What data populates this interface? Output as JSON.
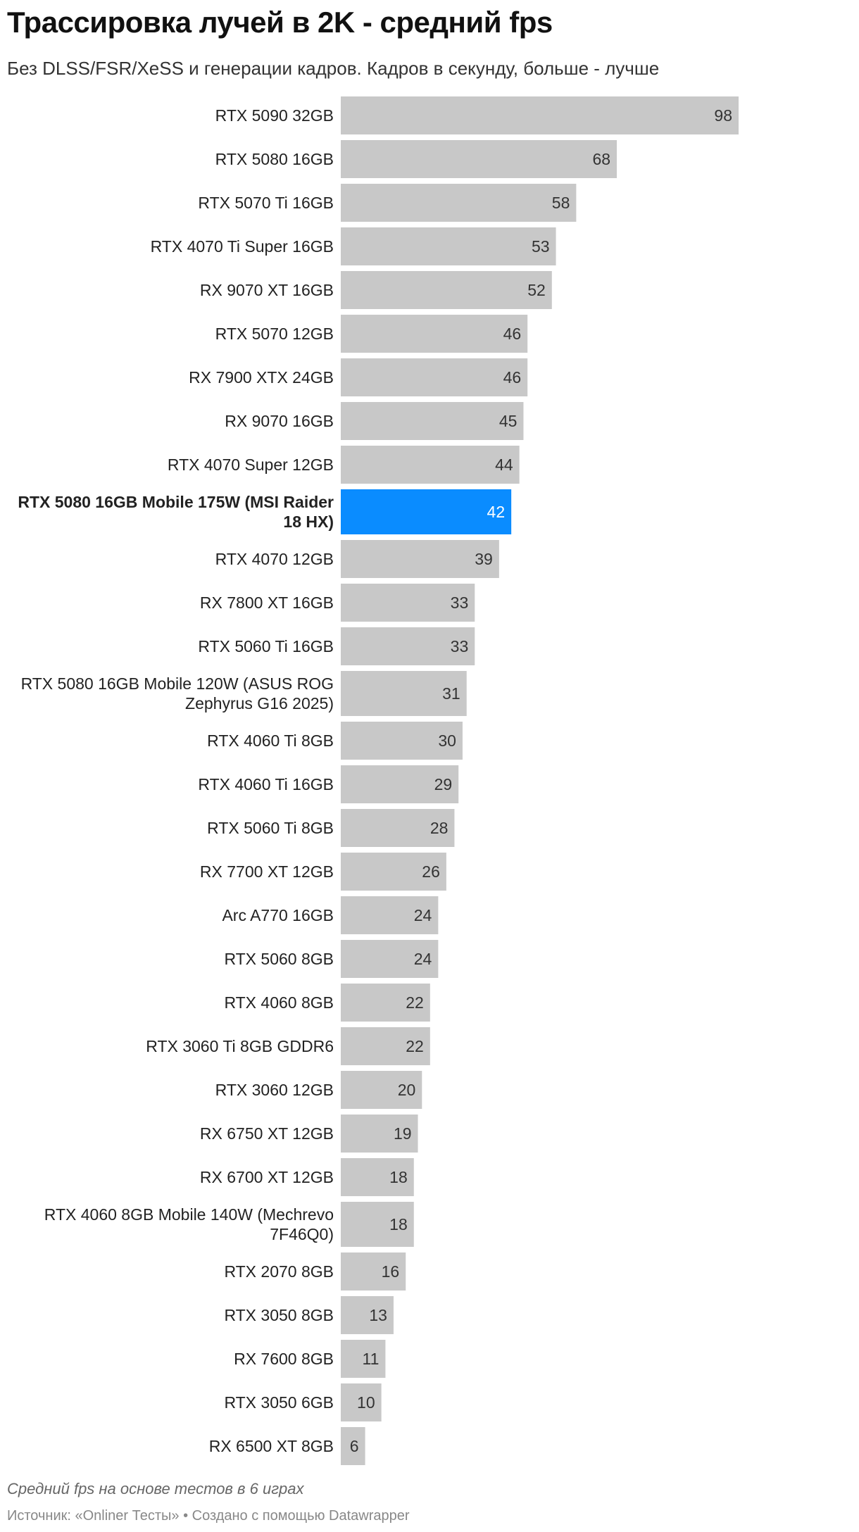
{
  "header": {
    "title": "Трассировка лучей в 2K - средний fps",
    "subtitle": "Без DLSS/FSR/XeSS и генерации кадров. Кадров в секунду, больше - лучше"
  },
  "footer": {
    "note": "Средний fps на основе тестов в 6 играх",
    "source": "Источник: «Onliner Тесты» • Создано с помощью Datawrapper"
  },
  "colors": {
    "bar": "#c8c8c8",
    "highlight": "#0a8cff",
    "value_label": "#333333",
    "value_label_highlight": "#ffffff"
  },
  "chart_data": {
    "type": "bar",
    "orientation": "horizontal",
    "xlim": [
      0,
      98
    ],
    "grid": false,
    "legend": "none",
    "highlight_index": 9,
    "categories": [
      [
        "RTX 5090 32GB"
      ],
      [
        "RTX 5080 16GB"
      ],
      [
        "RTX 5070 Ti 16GB"
      ],
      [
        "RTX 4070 Ti Super 16GB"
      ],
      [
        "RX 9070 XT 16GB"
      ],
      [
        "RTX 5070 12GB"
      ],
      [
        "RX 7900 XTX 24GB"
      ],
      [
        "RX 9070 16GB"
      ],
      [
        "RTX 4070 Super 12GB"
      ],
      [
        "RTX 5080 16GB Mobile 175W (MSI Raider",
        "18 HX)"
      ],
      [
        "RTX 4070 12GB"
      ],
      [
        "RX 7800 XT 16GB"
      ],
      [
        "RTX 5060 Ti 16GB"
      ],
      [
        "RTX 5080 16GB Mobile 120W (ASUS ROG",
        "Zephyrus G16 2025)"
      ],
      [
        "RTX 4060 Ti 8GB"
      ],
      [
        "RTX 4060 Ti 16GB"
      ],
      [
        "RTX 5060 Ti 8GB"
      ],
      [
        "RX 7700 XT 12GB"
      ],
      [
        "Arc A770 16GB"
      ],
      [
        "RTX 5060 8GB"
      ],
      [
        "RTX 4060 8GB"
      ],
      [
        "RTX 3060 Ti 8GB GDDR6"
      ],
      [
        "RTX 3060 12GB"
      ],
      [
        "RX 6750 XT 12GB"
      ],
      [
        "RX 6700 XT 12GB"
      ],
      [
        "RTX 4060 8GB Mobile 140W (Mechrevo",
        "7F46Q0)"
      ],
      [
        "RTX 2070 8GB"
      ],
      [
        "RTX 3050 8GB"
      ],
      [
        "RX 7600 8GB"
      ],
      [
        "RTX 3050 6GB"
      ],
      [
        "RX 6500 XT 8GB"
      ]
    ],
    "values": [
      98,
      68,
      58,
      53,
      52,
      46,
      46,
      45,
      44,
      42,
      39,
      33,
      33,
      31,
      30,
      29,
      28,
      26,
      24,
      24,
      22,
      22,
      20,
      19,
      18,
      18,
      16,
      13,
      11,
      10,
      6
    ]
  }
}
